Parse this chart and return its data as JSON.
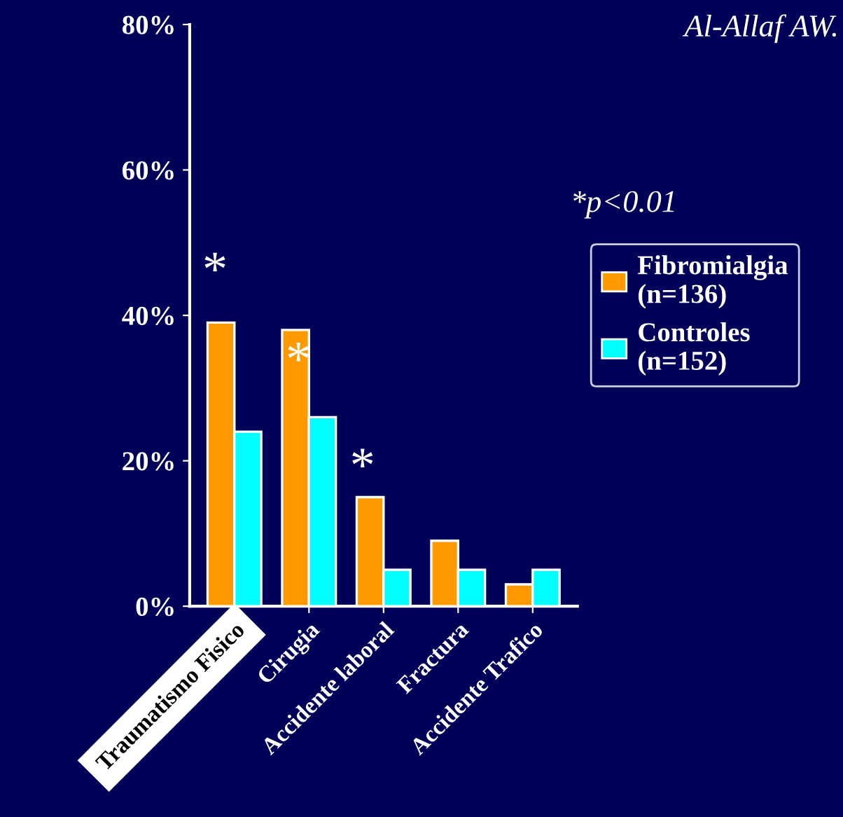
{
  "chart_data": {
    "type": "bar",
    "categories": [
      "Traumatismo Fisico",
      "Cirugia",
      "Accidente laboral",
      "Fractura",
      "Accidente Trafico"
    ],
    "series": [
      {
        "name": "Fibromialgia (n=136)",
        "color": "#ff9900",
        "values": [
          39,
          38,
          15,
          9,
          3
        ]
      },
      {
        "name": "Controles (n=152)",
        "color": "#00ffff",
        "values": [
          24,
          26,
          5,
          5,
          5
        ]
      }
    ],
    "ylim": [
      0,
      80
    ],
    "yticks": [
      {
        "value": 0,
        "label": "0%"
      },
      {
        "value": 20,
        "label": "20%"
      },
      {
        "value": 40,
        "label": "40%"
      },
      {
        "value": 60,
        "label": "60%"
      },
      {
        "value": 80,
        "label": "80%"
      }
    ],
    "annotations": [
      "*",
      "*",
      "*",
      "*p<0.01",
      "Al-Allaf AW."
    ],
    "legend": "right",
    "grid": false
  }
}
